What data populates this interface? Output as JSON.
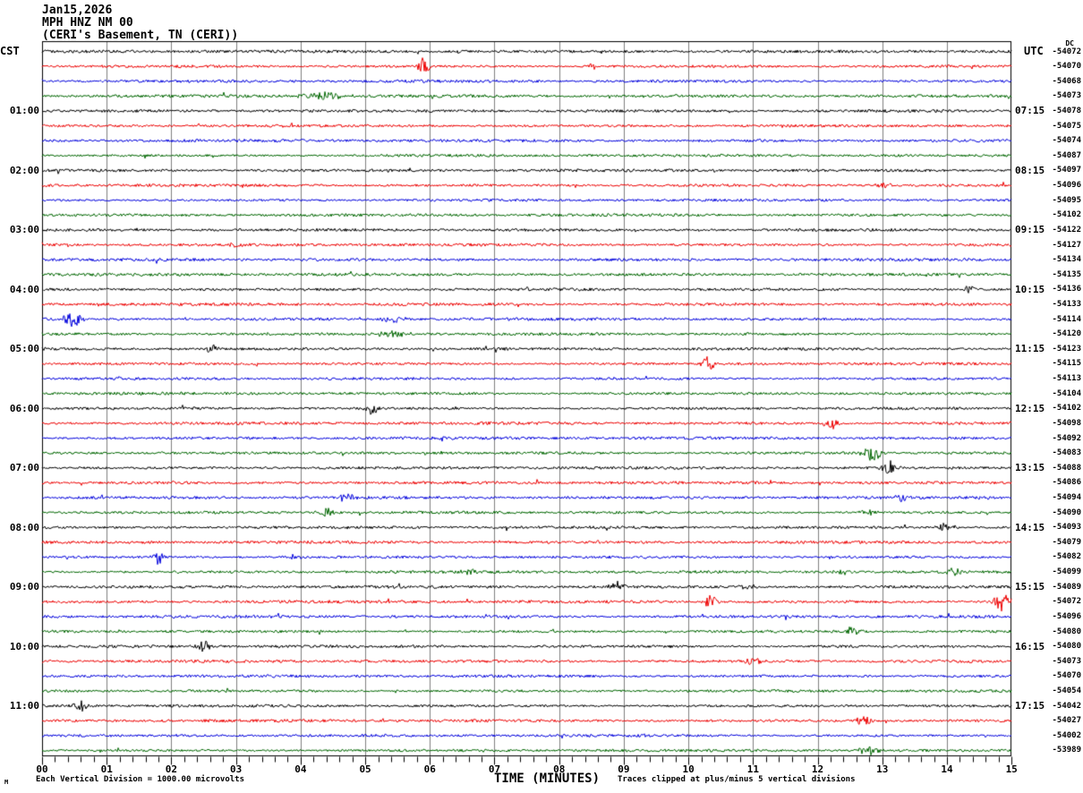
{
  "header": {
    "date": "Jan15,2026",
    "station": "MPH HNZ NM 00",
    "location": "(CERI's Basement, TN (CERI))"
  },
  "left_axis": {
    "header": "CST",
    "time_labels": [
      "01:00",
      "02:00",
      "03:00",
      "04:00",
      "05:00",
      "06:00",
      "07:00",
      "08:00",
      "09:00",
      "10:00",
      "11:00"
    ]
  },
  "right_axis": {
    "header": "UTC",
    "dc_header": "DC",
    "time_labels": [
      "07:15",
      "08:15",
      "09:15",
      "10:15",
      "11:15",
      "12:15",
      "13:15",
      "14:15",
      "15:15",
      "16:15",
      "17:15"
    ],
    "dc_values": [
      "-54072",
      "-54070",
      "-54068",
      "-54073",
      "-54078",
      "-54075",
      "-54074",
      "-54087",
      "-54097",
      "-54096",
      "-54095",
      "-54102",
      "-54122",
      "-54127",
      "-54134",
      "-54135",
      "-54136",
      "-54133",
      "-54114",
      "-54120",
      "-54123",
      "-54115",
      "-54113",
      "-54104",
      "-54102",
      "-54098",
      "-54092",
      "-54083",
      "-54088",
      "-54086",
      "-54094",
      "-54090",
      "-54093",
      "-54079",
      "-54082",
      "-54099",
      "-54089",
      "-54072",
      "-54096",
      "-54080",
      "-54080",
      "-54073",
      "-54070",
      "-54054",
      "-54042",
      "-54027",
      "-54002",
      "-53989"
    ]
  },
  "x_axis": {
    "title": "TIME (MINUTES)",
    "tick_labels": [
      "00",
      "01",
      "02",
      "03",
      "04",
      "05",
      "06",
      "07",
      "08",
      "09",
      "10",
      "11",
      "12",
      "13",
      "14",
      "15"
    ]
  },
  "footer": {
    "left_note": "Each Vertical Division = 1000.00 microvolts",
    "right_note": "Traces clipped at plus/minus 5 vertical divisions",
    "watermark": "M"
  },
  "colors": {
    "trace_cycle": [
      "#000000",
      "#ee0000",
      "#0000dd",
      "#006600"
    ],
    "grid": "#808080",
    "border": "#000000",
    "background": "#ffffff"
  },
  "chart_data": {
    "type": "line",
    "subtype": "helicorder-seismogram",
    "title": "Jan15,2026 MPH HNZ NM 00 (CERI's Basement, TN (CERI))",
    "xlabel": "TIME (MINUTES)",
    "x_range_minutes": [
      0,
      15
    ],
    "x_tick_labels": [
      "00",
      "01",
      "02",
      "03",
      "04",
      "05",
      "06",
      "07",
      "08",
      "09",
      "10",
      "11",
      "12",
      "13",
      "14",
      "15"
    ],
    "rows": 48,
    "traces_per_hour": 4,
    "row_color_cycle": [
      "black",
      "red",
      "blue",
      "green"
    ],
    "cst_hour_labels": [
      "01:00",
      "02:00",
      "03:00",
      "04:00",
      "05:00",
      "06:00",
      "07:00",
      "08:00",
      "09:00",
      "10:00",
      "11:00"
    ],
    "utc_hour_labels": [
      "07:15",
      "08:15",
      "09:15",
      "10:15",
      "11:15",
      "12:15",
      "13:15",
      "14:15",
      "15:15",
      "16:15",
      "17:15"
    ],
    "dc_offsets": [
      -54072,
      -54070,
      -54068,
      -54073,
      -54078,
      -54075,
      -54074,
      -54087,
      -54097,
      -54096,
      -54095,
      -54102,
      -54122,
      -54127,
      -54134,
      -54135,
      -54136,
      -54133,
      -54114,
      -54120,
      -54123,
      -54115,
      -54113,
      -54104,
      -54102,
      -54098,
      -54092,
      -54083,
      -54088,
      -54086,
      -54094,
      -54090,
      -54093,
      -54079,
      -54082,
      -54099,
      -54089,
      -54072,
      -54096,
      -54080,
      -54080,
      -54073,
      -54070,
      -54054,
      -54042,
      -54027,
      -54002,
      -53989
    ],
    "scale_notes": [
      "Each Vertical Division = 1000.00 microvolts",
      "Traces clipped at plus/minus 5 vertical divisions"
    ],
    "grid": "vertical lines each minute",
    "events": [
      {
        "row": 1,
        "minute": 5.9,
        "amp": 5.0,
        "w": 5
      },
      {
        "row": 1,
        "minute": 8.5,
        "amp": 2.0,
        "w": 4
      },
      {
        "row": 3,
        "minute": 4.35,
        "amp": 2.2,
        "w": 18
      },
      {
        "row": 9,
        "minute": 13.0,
        "amp": 1.8,
        "w": 6
      },
      {
        "row": 13,
        "minute": 3.0,
        "amp": 1.8,
        "w": 5
      },
      {
        "row": 16,
        "minute": 14.35,
        "amp": 2.6,
        "w": 5
      },
      {
        "row": 18,
        "minute": 0.47,
        "amp": 6.0,
        "w": 6
      },
      {
        "row": 18,
        "minute": 5.4,
        "amp": 2.0,
        "w": 10
      },
      {
        "row": 19,
        "minute": 5.4,
        "amp": 1.8,
        "w": 14
      },
      {
        "row": 20,
        "minute": 2.62,
        "amp": 3.5,
        "w": 5
      },
      {
        "row": 21,
        "minute": 10.3,
        "amp": 4.5,
        "w": 5
      },
      {
        "row": 24,
        "minute": 5.1,
        "amp": 3.5,
        "w": 5
      },
      {
        "row": 25,
        "minute": 12.2,
        "amp": 4.5,
        "w": 5
      },
      {
        "row": 27,
        "minute": 12.85,
        "amp": 4.5,
        "w": 7
      },
      {
        "row": 28,
        "minute": 13.1,
        "amp": 4.0,
        "w": 6
      },
      {
        "row": 30,
        "minute": 4.7,
        "amp": 2.6,
        "w": 6
      },
      {
        "row": 30,
        "minute": 13.3,
        "amp": 2.6,
        "w": 6
      },
      {
        "row": 31,
        "minute": 4.4,
        "amp": 3.2,
        "w": 6
      },
      {
        "row": 31,
        "minute": 12.8,
        "amp": 2.4,
        "w": 6
      },
      {
        "row": 32,
        "minute": 14.0,
        "amp": 2.6,
        "w": 7
      },
      {
        "row": 34,
        "minute": 1.8,
        "amp": 4.0,
        "w": 5
      },
      {
        "row": 34,
        "minute": 3.9,
        "amp": 2.0,
        "w": 6
      },
      {
        "row": 35,
        "minute": 6.6,
        "amp": 2.4,
        "w": 6
      },
      {
        "row": 35,
        "minute": 12.4,
        "amp": 2.4,
        "w": 6
      },
      {
        "row": 35,
        "minute": 14.1,
        "amp": 2.4,
        "w": 5
      },
      {
        "row": 36,
        "minute": 8.9,
        "amp": 2.8,
        "w": 6
      },
      {
        "row": 36,
        "minute": 10.9,
        "amp": 2.4,
        "w": 6
      },
      {
        "row": 37,
        "minute": 10.35,
        "amp": 3.5,
        "w": 6
      },
      {
        "row": 37,
        "minute": 14.85,
        "amp": 6.0,
        "w": 6
      },
      {
        "row": 39,
        "minute": 12.55,
        "amp": 3.0,
        "w": 6
      },
      {
        "row": 40,
        "minute": 2.5,
        "amp": 3.5,
        "w": 5
      },
      {
        "row": 41,
        "minute": 11.0,
        "amp": 2.6,
        "w": 6
      },
      {
        "row": 44,
        "minute": 0.6,
        "amp": 3.0,
        "w": 6
      },
      {
        "row": 45,
        "minute": 12.7,
        "amp": 3.2,
        "w": 6
      },
      {
        "row": 47,
        "minute": 12.8,
        "amp": 2.6,
        "w": 8
      }
    ]
  }
}
